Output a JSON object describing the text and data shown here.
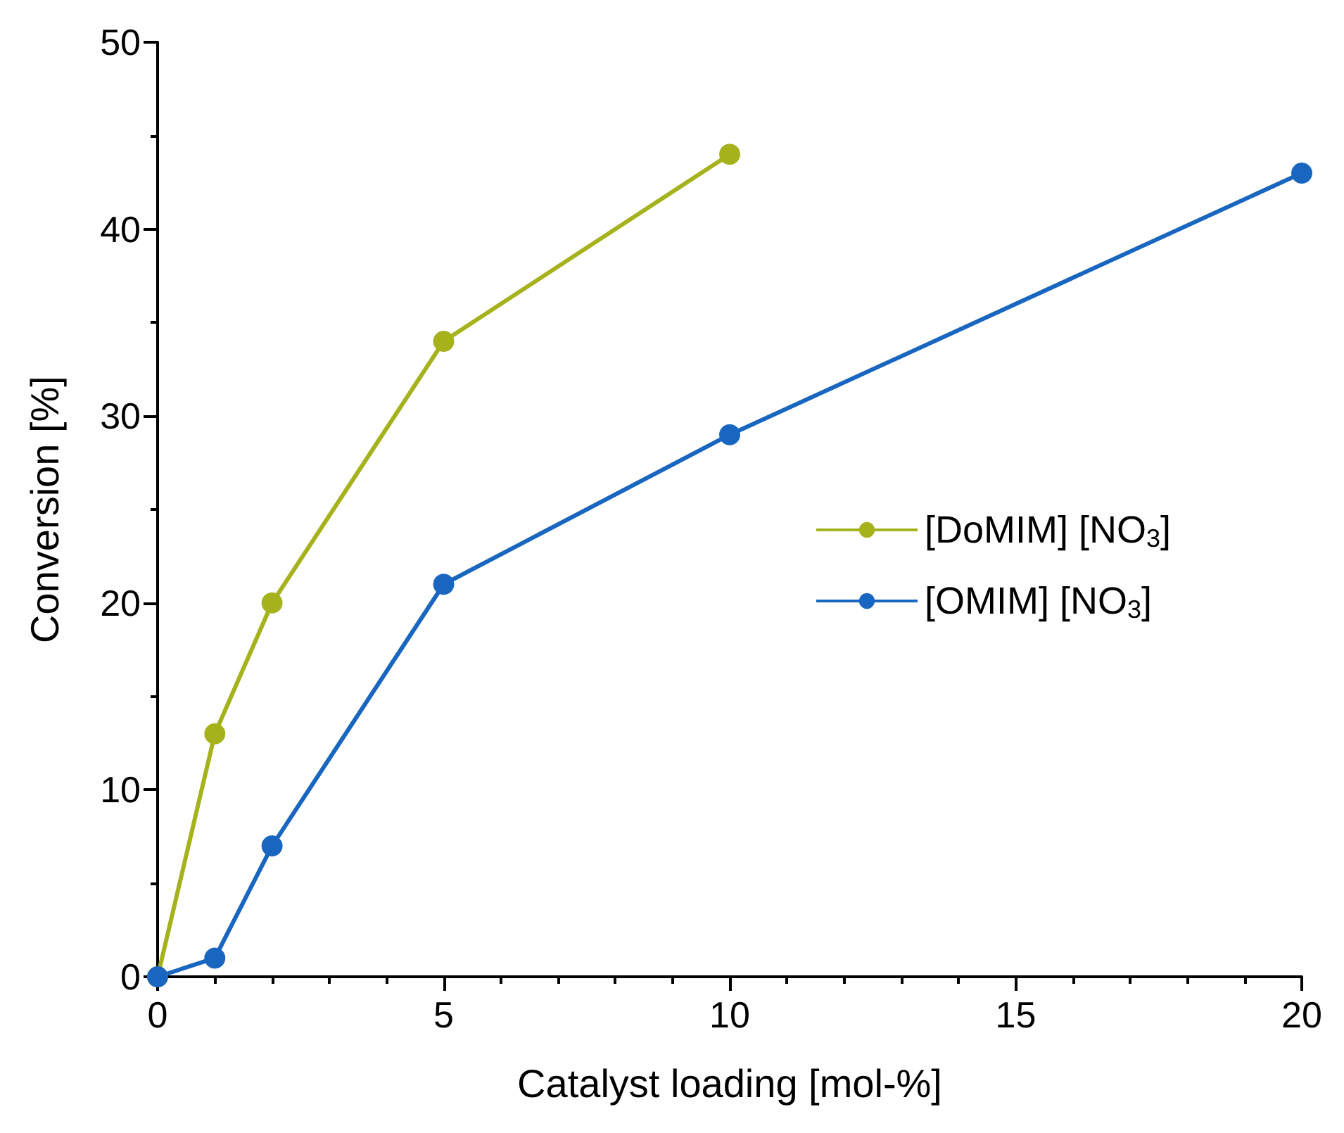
{
  "chart_data": {
    "type": "line",
    "xlabel": "Catalyst loading [mol-%]",
    "ylabel": "Conversion [%]",
    "xlim": [
      0,
      20
    ],
    "xticks": [
      0,
      5,
      10,
      15,
      20
    ],
    "ylim": [
      0,
      50
    ],
    "yticks": [
      0,
      10,
      20,
      30,
      40,
      50
    ],
    "series": [
      {
        "name": "[DoMIM] [NO$_{3}$]",
        "color": "#a5b21c",
        "x": [
          0,
          1,
          2,
          5,
          10
        ],
        "values": [
          0,
          13,
          20,
          34,
          44
        ]
      },
      {
        "name": "[OMIM] [NO$_{3}$]",
        "color": "#1866c0",
        "x": [
          0,
          1,
          2,
          5,
          10,
          20
        ],
        "values": [
          0,
          1,
          7,
          21,
          29,
          43
        ]
      }
    ],
    "grid": false,
    "legend": "right",
    "marker": "circle",
    "line_style": "solid"
  }
}
